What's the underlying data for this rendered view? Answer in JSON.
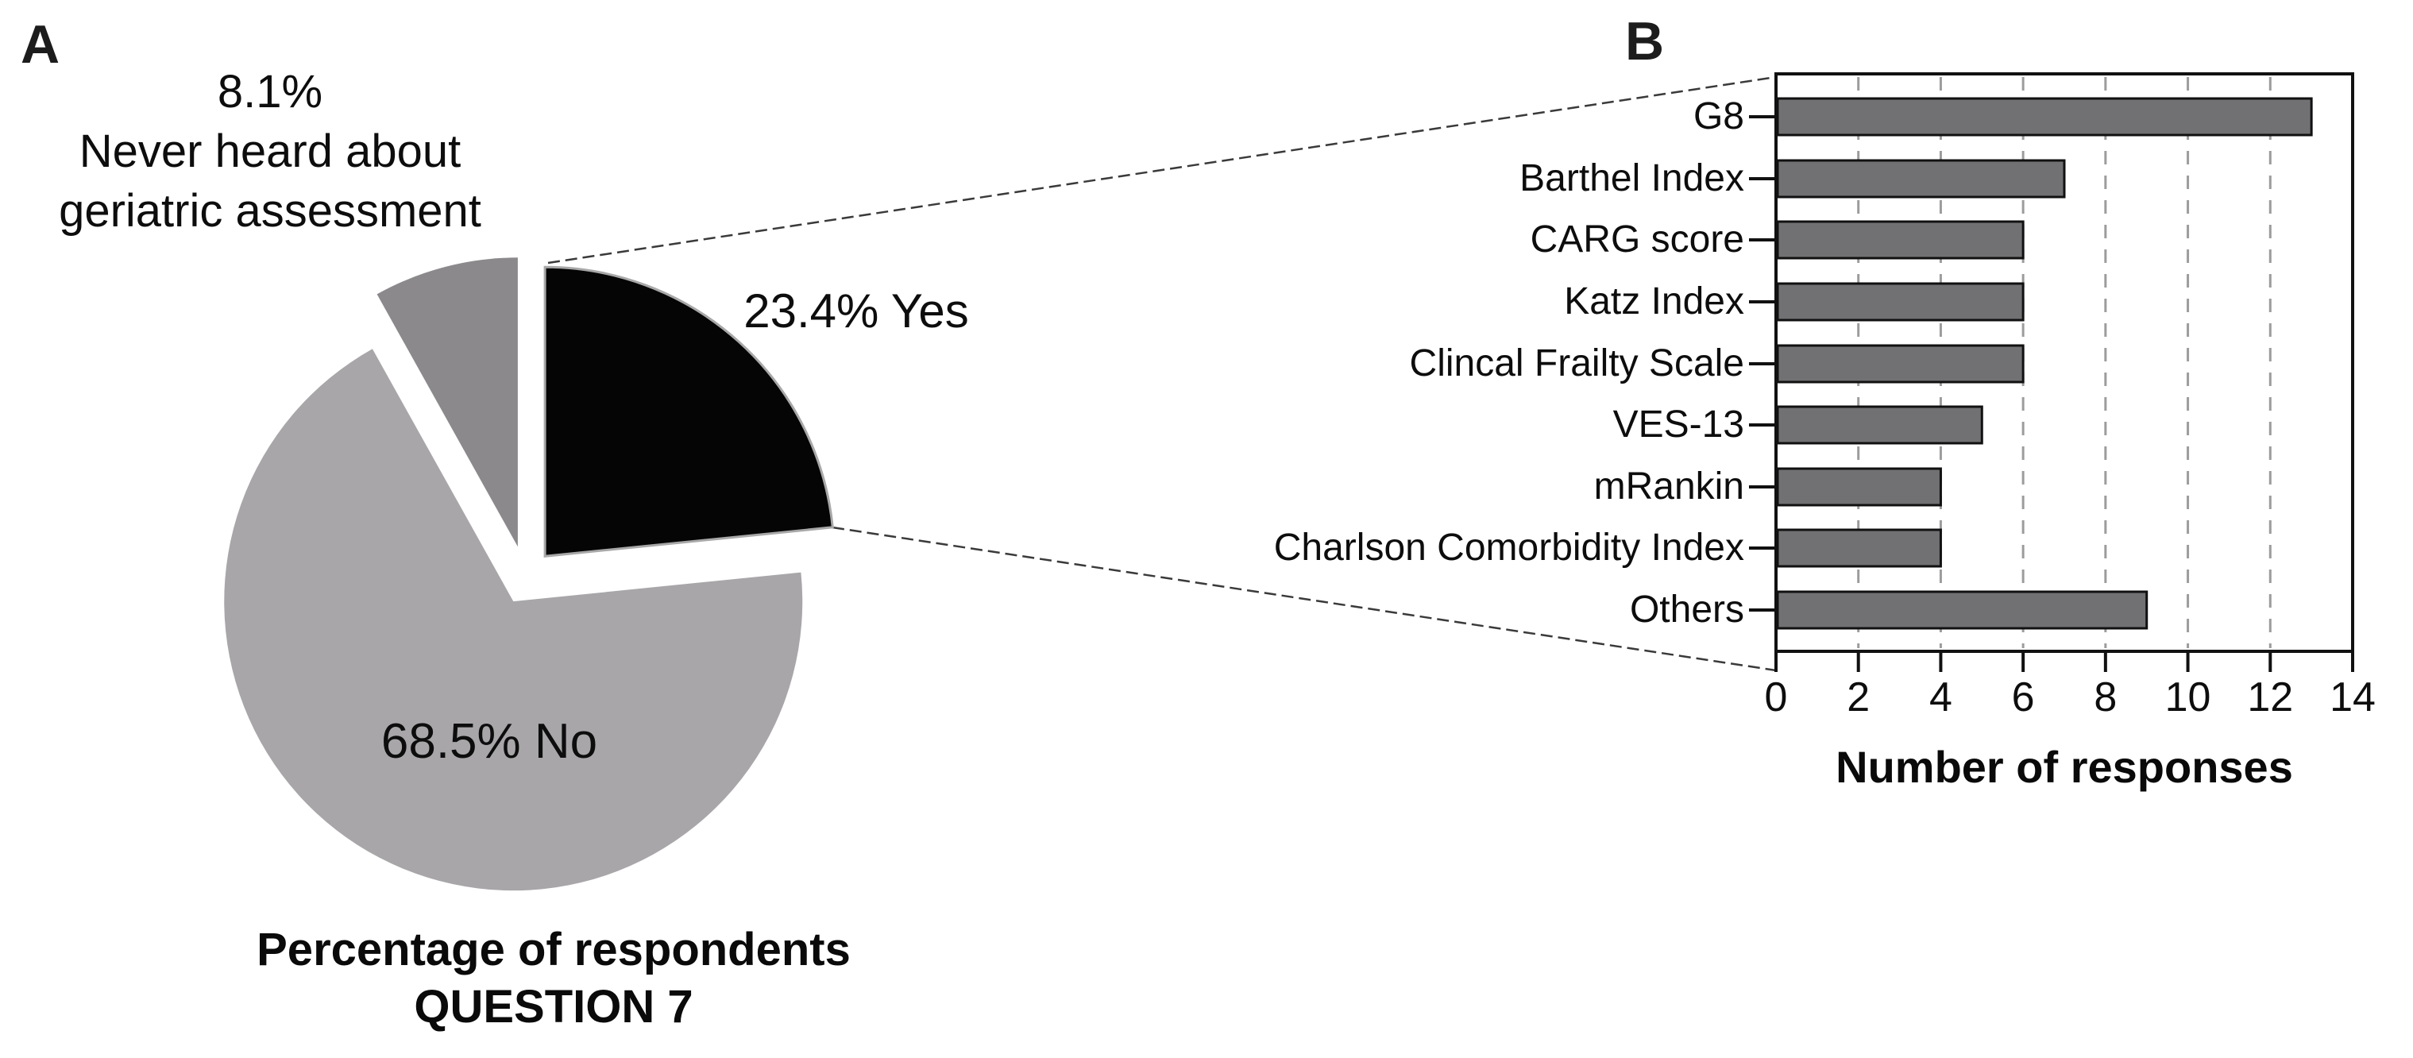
{
  "panels": {
    "a": "A",
    "b": "B"
  },
  "chart_data": [
    {
      "type": "pie",
      "panel": "A",
      "title_lines": [
        "Percentage of respondents",
        "QUESTION 7"
      ],
      "start_angle_deg_from_north": 0,
      "direction": "clockwise",
      "slices": [
        {
          "name": "Yes",
          "pct": 23.4,
          "label": "23.4% Yes",
          "color": "#050505"
        },
        {
          "name": "No",
          "pct": 68.5,
          "label": "68.5% No",
          "color": "#a8a6a9"
        },
        {
          "name": "Never heard about geriatric assessment",
          "pct": 8.1,
          "color": "#8b898c"
        }
      ],
      "annotation_lines": [
        "8.1%",
        "Never heard about",
        "geriatric assessment"
      ],
      "exploded": true
    },
    {
      "type": "bar",
      "panel": "B",
      "orientation": "horizontal",
      "categories": [
        "G8",
        "Barthel Index",
        "CARG score",
        "Katz Index",
        "Clincal Frailty Scale",
        "VES-13",
        "mRankin",
        "Charlson Comorbidity Index",
        "Others"
      ],
      "values": [
        13,
        7,
        6,
        6,
        6,
        5,
        4,
        4,
        9
      ],
      "xlabel": "Number of responses",
      "xlim": [
        0,
        14
      ],
      "x_ticks": [
        0,
        2,
        4,
        6,
        8,
        10,
        12,
        14
      ],
      "gridlines": "dashed-vertical-at-even-values",
      "bar_color": "#717173",
      "bar_border_color": "#111111",
      "frame": true
    }
  ]
}
